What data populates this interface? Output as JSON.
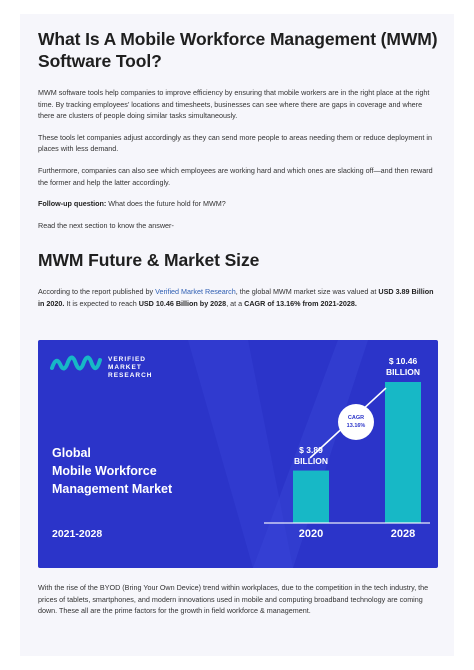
{
  "section1": {
    "heading": "What Is A Mobile Workforce Management (MWM) Software Tool?",
    "p1": "MWM software tools help companies to improve efficiency by ensuring that mobile workers are in the right place at the right time. By tracking employees’ locations and timesheets, businesses can see where there are gaps in coverage and where there are clusters of people doing similar tasks simultaneously.",
    "p2": "These tools let companies adjust accordingly as they can send more people to areas needing them or reduce deployment in places with less demand.",
    "p3": "Furthermore, companies can also see which employees are working hard and which ones are slacking off—and then reward the former and help the latter accordingly.",
    "followup_label": "Follow-up question:",
    "followup_text": " What does the future hold for MWM?",
    "p5": "Read the next section to know the answer-"
  },
  "section2": {
    "heading": "MWM Future & Market Size",
    "intro_1": "According to the report published by ",
    "intro_link": "Verified Market Research",
    "intro_2": ", the global MWM market size was valued at ",
    "intro_val1": "USD 3.89 Billion in 2020.",
    "intro_3": " It is expected to reach ",
    "intro_val2": "USD 10.46 Billion by 2028",
    "intro_4": ", at a ",
    "intro_val3": "CAGR of 13.16% from 2021-2028.",
    "closing": "With the rise of the BYOD (Bring Your Own Device) trend within workplaces, due to the competition in the tech industry, the prices of tablets, smartphones, and modern innovations used in mobile and computing broadband technology are coming down. These all are the prime factors for the growth in field workforce & management."
  },
  "banner": {
    "logo_line1": "VERIFIED",
    "logo_line2": "MARKET",
    "logo_line3": "RESEARCH",
    "title_line1": "Global",
    "title_line2": "Mobile Workforce",
    "title_line3": "Management Market",
    "years": "2021-2028",
    "cagr_label": "CAGR",
    "cagr_value": "13.16%",
    "colors": {
      "background": "#2b34c9",
      "bar": "#17b8c6",
      "text": "#ffffff"
    }
  },
  "chart_data": {
    "type": "bar",
    "categories": [
      "2020",
      "2028"
    ],
    "values": [
      3.89,
      10.46
    ],
    "value_labels_line1": [
      "$ 3.89",
      "$ 10.46"
    ],
    "value_labels_line2": [
      "BILLION",
      "BILLION"
    ],
    "ylim": [
      0,
      12
    ]
  }
}
